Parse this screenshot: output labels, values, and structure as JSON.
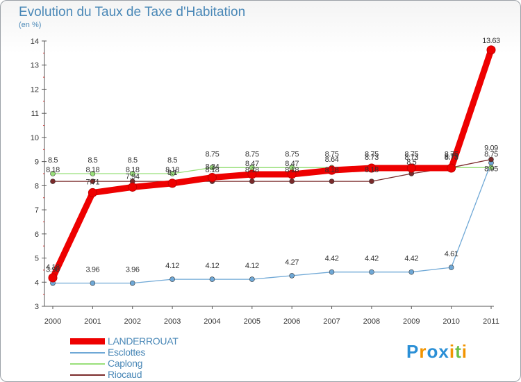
{
  "title": "Evolution du Taux de Taxe d'Habitation",
  "unit_label": "(en %)",
  "chart_data": {
    "type": "line",
    "title": "Evolution du Taux de Taxe d'Habitation",
    "ylabel": "(en %)",
    "xlabel": "",
    "ylim": [
      3,
      14
    ],
    "yticks": [
      "3",
      "4",
      "5",
      "6",
      "7",
      "8",
      "9",
      "10",
      "11",
      "12",
      "13",
      "14"
    ],
    "grid": false,
    "categories": [
      "2000",
      "2001",
      "2002",
      "2003",
      "2004",
      "2005",
      "2006",
      "2007",
      "2008",
      "2009",
      "2010",
      "2011"
    ],
    "series": [
      {
        "name": "LANDERROUAT",
        "color": "#ee0000",
        "values": [
          4.18,
          7.71,
          7.94,
          8.1,
          8.34,
          8.47,
          8.47,
          8.64,
          8.73,
          8.73,
          8.73,
          13.63
        ],
        "labels": [
          "4.18",
          "7.71",
          "7.94",
          "8.1",
          "8.34",
          "8.47",
          "8.47",
          "8.64",
          "8.73",
          "8.73",
          "8.73",
          "13.63"
        ]
      },
      {
        "name": "Esclottes",
        "color": "#6fa8d6",
        "values": [
          3.96,
          3.96,
          3.96,
          4.12,
          4.12,
          4.12,
          4.27,
          4.42,
          4.42,
          4.42,
          4.61,
          8.95
        ],
        "labels": [
          "3.96",
          "3.96",
          "3.96",
          "4.12",
          "4.12",
          "4.12",
          "4.27",
          "4.42",
          "4.42",
          "4.42",
          "4.61",
          "8.95"
        ]
      },
      {
        "name": "Caplong",
        "color": "#99e07a",
        "values": [
          8.5,
          8.5,
          8.5,
          8.5,
          8.75,
          8.75,
          8.75,
          8.75,
          8.75,
          8.75,
          8.75,
          8.75
        ],
        "labels": [
          "8.5",
          "8.5",
          "8.5",
          "8.5",
          "8.75",
          "8.75",
          "8.75",
          "8.75",
          "8.75",
          "8.75",
          "8.75",
          "8.75"
        ]
      },
      {
        "name": "Riocaud",
        "color": "#7a2a2a",
        "values": [
          8.18,
          8.18,
          8.18,
          8.18,
          8.18,
          8.18,
          8.18,
          8.18,
          8.18,
          8.5,
          8.75,
          9.09
        ],
        "labels": [
          "8.18",
          "8.18",
          "8.18",
          "8.18",
          "8.18",
          "8.18",
          "8.18",
          "8.18",
          "8.18",
          "8.5",
          "8.75",
          "9.09"
        ]
      }
    ]
  },
  "logo": {
    "letters": [
      "P",
      "r",
      "o",
      "x",
      "i",
      "t",
      "i"
    ],
    "colors": [
      "#2a8fd6",
      "#f29400",
      "#2a8fd6",
      "#2a8fd6",
      "#f29400",
      "#6cc04a",
      "#f29400"
    ]
  }
}
